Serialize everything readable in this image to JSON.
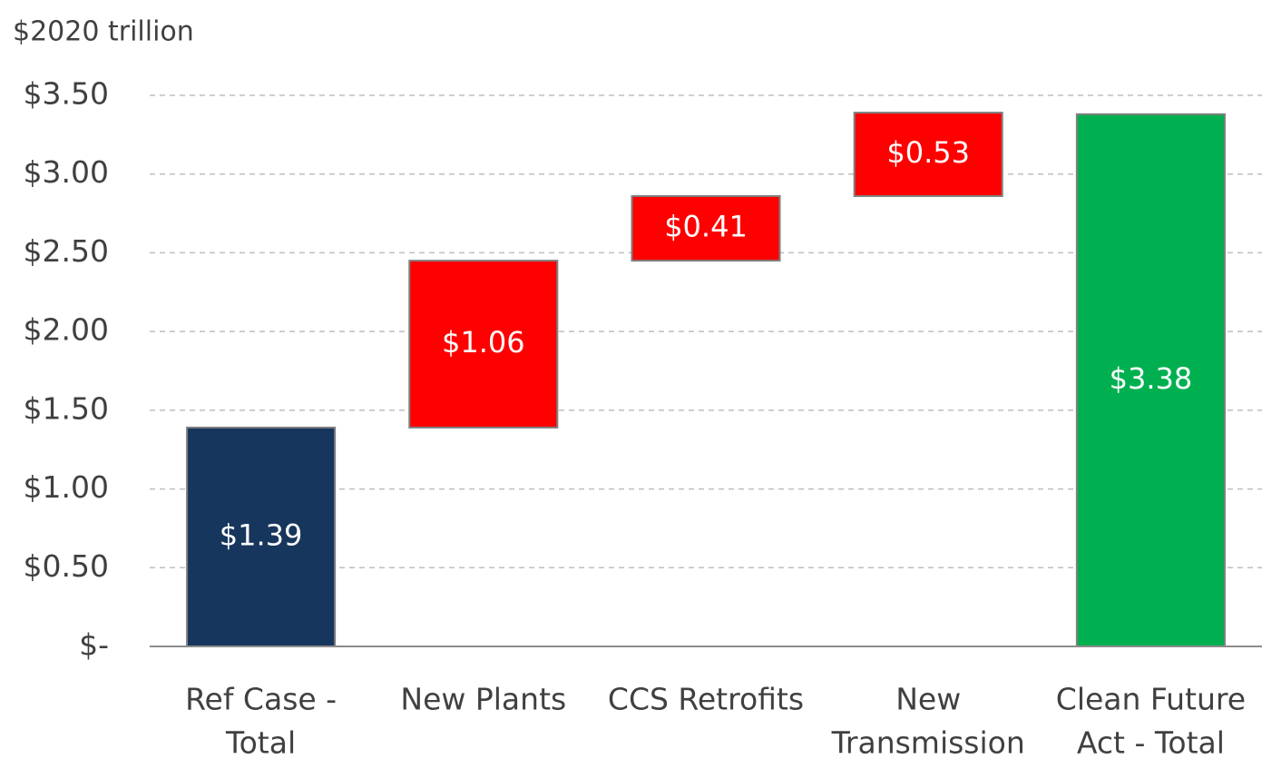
{
  "chart_data": {
    "type": "waterfall",
    "ylabel": "$2020 trillion",
    "categories": [
      [
        "Ref Case -",
        "Total"
      ],
      [
        "New Plants"
      ],
      [
        "CCS Retrofits"
      ],
      [
        "New",
        "Transmission"
      ],
      [
        "Clean Future",
        "Act - Total"
      ]
    ],
    "values": [
      1.39,
      1.06,
      0.41,
      0.53,
      3.38
    ],
    "value_labels": [
      "$1.39",
      "$1.06",
      "$0.41",
      "$0.53",
      "$3.38"
    ],
    "measure": [
      "absolute",
      "relative",
      "relative",
      "relative",
      "total"
    ],
    "colors": [
      "#17365d",
      "#ff0000",
      "#ff0000",
      "#ff0000",
      "#00b050"
    ],
    "ylim": [
      0,
      3.5
    ],
    "yticks": [
      {
        "value": 0,
        "label": "$-"
      },
      {
        "value": 0.5,
        "label": "$0.50"
      },
      {
        "value": 1,
        "label": "$1.00"
      },
      {
        "value": 1.5,
        "label": "$1.50"
      },
      {
        "value": 2,
        "label": "$2.00"
      },
      {
        "value": 2.5,
        "label": "$2.50"
      },
      {
        "value": 3,
        "label": "$3.00"
      },
      {
        "value": 3.5,
        "label": "$3.50"
      }
    ],
    "grid": true
  }
}
